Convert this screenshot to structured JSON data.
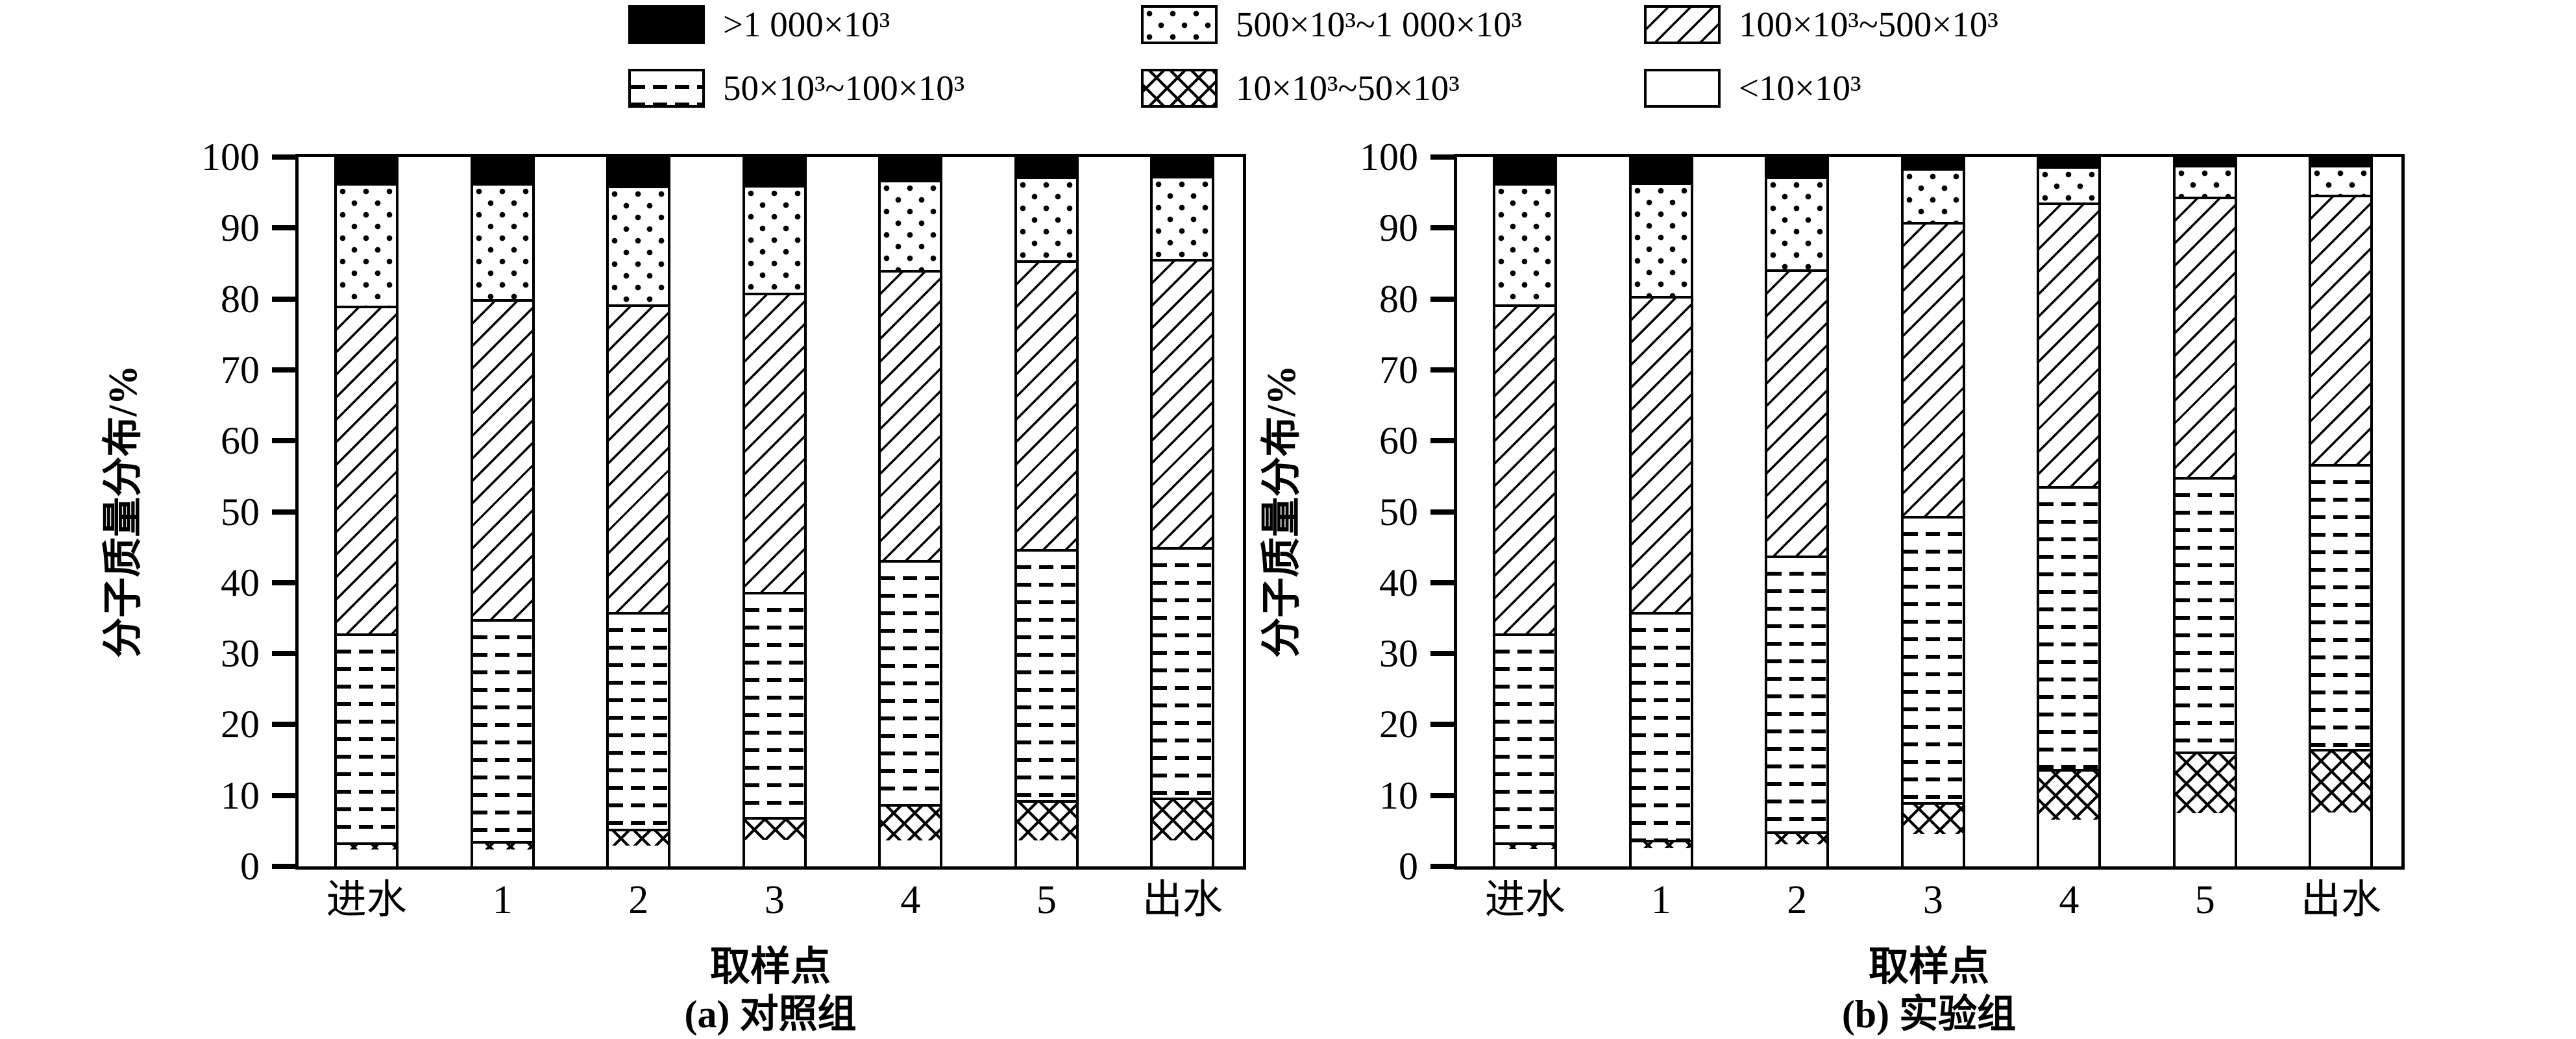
{
  "figure": {
    "background": "#ffffff",
    "ink": "#000000"
  },
  "legend": {
    "rows": [
      [
        {
          "pattern": "solid",
          "label": ">1 000×10³"
        },
        {
          "pattern": "dots",
          "label": "500×10³~1 000×10³"
        },
        {
          "pattern": "diag",
          "label": "100×10³~500×10³"
        }
      ],
      [
        {
          "pattern": "dash",
          "label": "50×10³~100×10³"
        },
        {
          "pattern": "cross",
          "label": "10×10³~50×10³"
        },
        {
          "pattern": "plain",
          "label": "<10×10³"
        }
      ]
    ]
  },
  "chart_data": [
    {
      "type": "bar",
      "stacked": true,
      "stack_order": "bottom-to-top",
      "title": "(a) 对照组",
      "xlabel": "取样点",
      "ylabel": "分子质量分布/%",
      "ylim": [
        0,
        100
      ],
      "y_ticks": [
        0,
        10,
        20,
        30,
        40,
        50,
        60,
        70,
        80,
        90,
        100
      ],
      "grid": false,
      "legend_position": "top",
      "categories": [
        "进水",
        "1",
        "2",
        "3",
        "4",
        "5",
        "出水"
      ],
      "series": [
        {
          "name": "<10×10³",
          "pattern": "plain",
          "values": [
            2.4,
            2.4,
            2.9,
            3.8,
            3.7,
            3.7,
            3.7
          ]
        },
        {
          "name": "10×10³~50×10³",
          "pattern": "cross",
          "values": [
            1.0,
            1.2,
            2.4,
            3.2,
            5.1,
            5.7,
            6.0
          ]
        },
        {
          "name": "50×10³~100×10³",
          "pattern": "dash",
          "values": [
            29.6,
            31.4,
            30.7,
            31.8,
            34.5,
            35.5,
            35.5
          ]
        },
        {
          "name": "100×10³~500×10³",
          "pattern": "diag",
          "values": [
            46.3,
            45.3,
            43.5,
            42.4,
            41.1,
            40.9,
            40.8
          ]
        },
        {
          "name": "500×10³~1 000×10³",
          "pattern": "dots",
          "values": [
            17.4,
            16.4,
            16.8,
            15.2,
            12.8,
            11.8,
            11.7
          ]
        },
        {
          "name": ">1 000×10³",
          "pattern": "solid",
          "values": [
            3.3,
            3.3,
            3.7,
            3.6,
            2.8,
            2.4,
            2.3
          ]
        }
      ]
    },
    {
      "type": "bar",
      "stacked": true,
      "stack_order": "bottom-to-top",
      "title": "(b) 实验组",
      "xlabel": "取样点",
      "ylabel": "分子质量分布/%",
      "ylim": [
        0,
        100
      ],
      "y_ticks": [
        0,
        10,
        20,
        30,
        40,
        50,
        60,
        70,
        80,
        90,
        100
      ],
      "grid": false,
      "legend_position": "top",
      "categories": [
        "进水",
        "1",
        "2",
        "3",
        "4",
        "5",
        "出水"
      ],
      "series": [
        {
          "name": "<10×10³",
          "pattern": "plain",
          "values": [
            2.5,
            2.6,
            3.1,
            4.6,
            6.6,
            7.5,
            7.6
          ]
        },
        {
          "name": "10×10³~50×10³",
          "pattern": "cross",
          "values": [
            0.9,
            1.2,
            1.9,
            4.5,
            7.2,
            8.8,
            9.0
          ]
        },
        {
          "name": "50×10³~100×10³",
          "pattern": "dash",
          "values": [
            29.6,
            32.2,
            39.0,
            40.5,
            40.0,
            38.8,
            40.3
          ]
        },
        {
          "name": "100×10³~500×10³",
          "pattern": "diag",
          "values": [
            46.5,
            44.7,
            40.5,
            41.6,
            40.1,
            39.7,
            38.1
          ]
        },
        {
          "name": "500×10³~1 000×10³",
          "pattern": "dots",
          "values": [
            17.2,
            16.1,
            13.1,
            7.6,
            5.2,
            4.5,
            4.3
          ]
        },
        {
          "name": ">1 000×10³",
          "pattern": "solid",
          "values": [
            3.3,
            3.2,
            2.4,
            1.2,
            0.9,
            0.7,
            0.7
          ]
        }
      ]
    }
  ]
}
